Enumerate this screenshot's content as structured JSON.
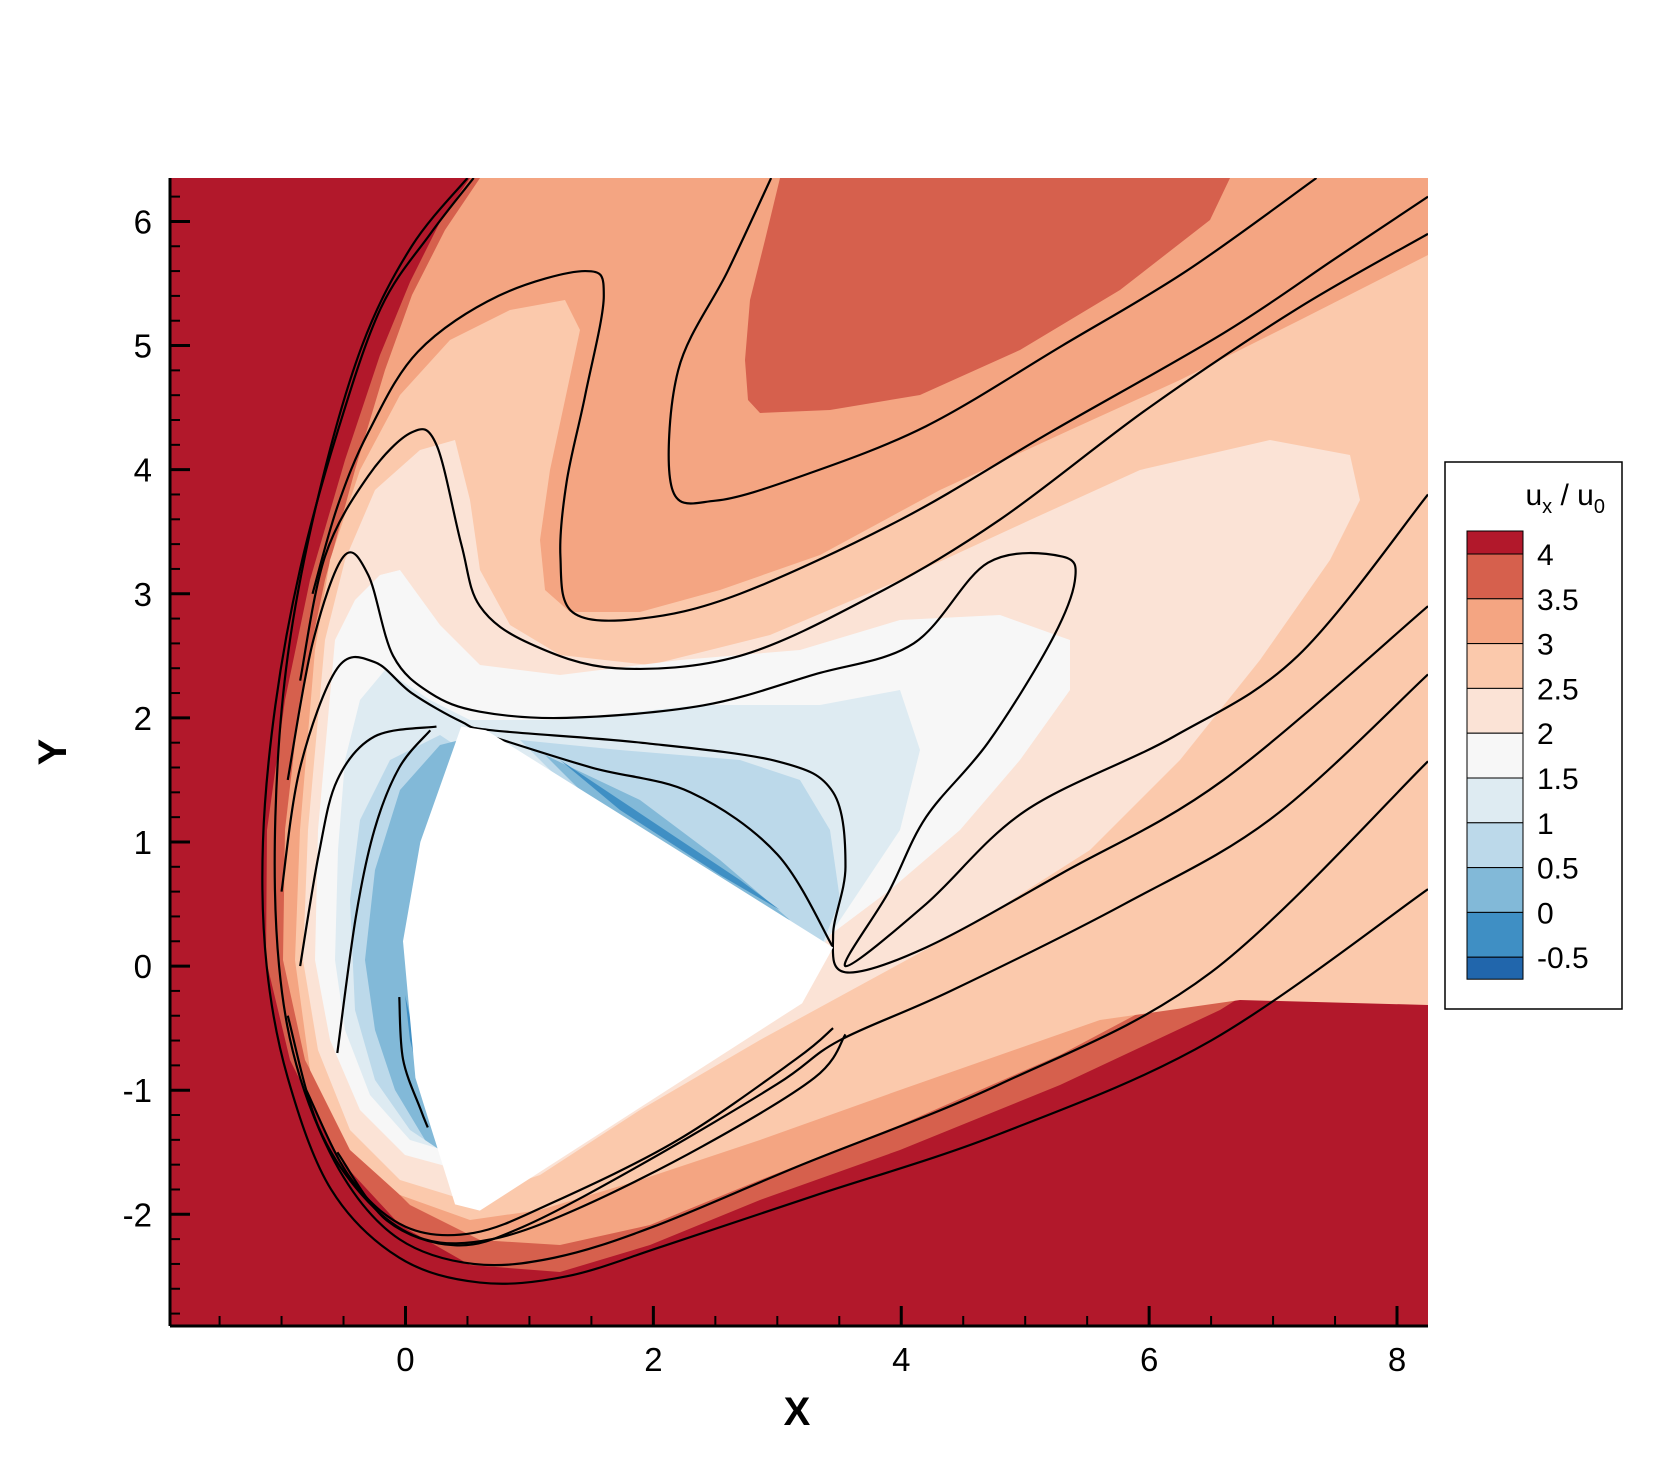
{
  "chart_data": {
    "type": "heatmap",
    "title": "",
    "xlabel": "X",
    "ylabel": "Y",
    "xlim": [
      -1.9,
      8.25
    ],
    "ylim": [
      -2.9,
      6.35
    ],
    "x_ticks": [
      0,
      2,
      4,
      6,
      8
    ],
    "x_tick_labels": [
      "0",
      "2",
      "4",
      "6",
      "8"
    ],
    "y_ticks": [
      -2,
      -1,
      0,
      1,
      2,
      3,
      4,
      5,
      6
    ],
    "y_tick_labels": [
      "-2",
      "-1",
      "0",
      "1",
      "2",
      "3",
      "4",
      "5",
      "6"
    ],
    "colorbar": {
      "title_main": "u",
      "title_sub_1": "x",
      "title_sep": " / u",
      "title_sub_2": "0",
      "levels": [
        4,
        3.5,
        3,
        2.5,
        2,
        1.5,
        1,
        0.5,
        0,
        -0.5
      ],
      "level_labels": [
        "4",
        "3.5",
        "3",
        "2.5",
        "2",
        "1.5",
        "1",
        "0.5",
        "0",
        "-0.5"
      ],
      "colors": [
        "#b2182b",
        "#d6604d",
        "#f4a582",
        "#fbc9ac",
        "#fbe3d6",
        "#f7f7f7",
        "#deebf2",
        "#bcd9ea",
        "#82b9d8",
        "#3f8fc4",
        "#2166ac"
      ],
      "placement": "right"
    },
    "body_region": {
      "description_color": "#ffffff",
      "vertices": [
        [
          0.45,
          1.93
        ],
        [
          0.65,
          1.9
        ],
        [
          3.45,
          0.15
        ],
        [
          3.2,
          -0.3
        ],
        [
          0.6,
          -1.97
        ],
        [
          0.4,
          -1.92
        ],
        [
          0.08,
          -0.9
        ],
        [
          -0.02,
          0.2
        ],
        [
          0.12,
          1.0
        ]
      ]
    },
    "contour_lines": [
      {
        "value": 4.0,
        "points": [
          [
            0.55,
            6.35
          ],
          [
            0.2,
            5.9
          ],
          [
            -0.2,
            5.3
          ],
          [
            -0.55,
            4.3
          ],
          [
            -0.85,
            3.2
          ],
          [
            -1.05,
            2.1
          ],
          [
            -1.15,
            1.0
          ],
          [
            -1.12,
            0.0
          ],
          [
            -0.95,
            -0.9
          ],
          [
            -0.6,
            -1.8
          ],
          [
            -0.05,
            -2.35
          ],
          [
            0.6,
            -2.55
          ],
          [
            1.3,
            -2.5
          ],
          [
            2.1,
            -2.25
          ],
          [
            3.3,
            -1.85
          ],
          [
            4.8,
            -1.35
          ],
          [
            6.5,
            -0.6
          ],
          [
            8.25,
            0.62
          ]
        ]
      },
      {
        "value": 3.5,
        "points": [
          [
            0.5,
            6.35
          ],
          [
            0.05,
            5.8
          ],
          [
            -0.35,
            5.0
          ],
          [
            -0.7,
            3.8
          ],
          [
            -0.95,
            2.5
          ],
          [
            -1.05,
            1.2
          ],
          [
            -1.02,
            0.0
          ],
          [
            -0.85,
            -0.9
          ],
          [
            -0.5,
            -1.7
          ],
          [
            -0.05,
            -2.2
          ],
          [
            0.55,
            -2.4
          ],
          [
            1.2,
            -2.35
          ],
          [
            2.0,
            -2.1
          ],
          [
            3.2,
            -1.6
          ],
          [
            4.8,
            -0.95
          ],
          [
            6.5,
            -0.05
          ],
          [
            8.25,
            1.65
          ]
        ]
      },
      {
        "value": 3.0,
        "points": [
          [
            2.95,
            6.35
          ],
          [
            2.6,
            5.6
          ],
          [
            2.2,
            4.8
          ],
          [
            2.15,
            3.85
          ],
          [
            2.5,
            3.75
          ],
          [
            3.2,
            3.95
          ],
          [
            4.2,
            4.35
          ],
          [
            5.3,
            5.0
          ],
          [
            6.3,
            5.6
          ],
          [
            7.35,
            6.35
          ]
        ]
      },
      {
        "value": 3.0,
        "points": [
          [
            -0.75,
            3.0
          ],
          [
            -0.55,
            3.7
          ],
          [
            -0.3,
            4.3
          ],
          [
            0.1,
            4.95
          ],
          [
            0.75,
            5.4
          ],
          [
            1.45,
            5.6
          ],
          [
            1.6,
            5.4
          ],
          [
            1.45,
            4.6
          ],
          [
            1.3,
            3.9
          ],
          [
            1.25,
            3.3
          ],
          [
            1.35,
            2.85
          ],
          [
            1.9,
            2.8
          ],
          [
            2.7,
            3.0
          ],
          [
            4.0,
            3.6
          ],
          [
            5.2,
            4.3
          ],
          [
            6.6,
            5.1
          ],
          [
            7.5,
            5.7
          ],
          [
            8.25,
            6.2
          ]
        ]
      },
      {
        "value": 2.5,
        "points": [
          [
            -0.85,
            2.3
          ],
          [
            -0.65,
            3.3
          ],
          [
            -0.3,
            3.95
          ],
          [
            0.05,
            4.3
          ],
          [
            0.25,
            4.2
          ],
          [
            0.45,
            3.4
          ],
          [
            0.6,
            2.9
          ],
          [
            1.0,
            2.6
          ],
          [
            1.7,
            2.4
          ],
          [
            2.7,
            2.5
          ],
          [
            3.8,
            3.0
          ],
          [
            4.8,
            3.6
          ],
          [
            6.0,
            4.5
          ],
          [
            7.2,
            5.3
          ],
          [
            8.25,
            5.9
          ]
        ]
      },
      {
        "value": 2.0,
        "points": [
          [
            -0.95,
            1.5
          ],
          [
            -0.75,
            2.6
          ],
          [
            -0.5,
            3.3
          ],
          [
            -0.3,
            3.15
          ],
          [
            -0.1,
            2.5
          ],
          [
            0.2,
            2.2
          ],
          [
            0.6,
            2.05
          ],
          [
            1.3,
            2.0
          ],
          [
            2.4,
            2.1
          ],
          [
            3.3,
            2.35
          ],
          [
            4.1,
            2.6
          ],
          [
            4.7,
            3.25
          ],
          [
            5.3,
            3.3
          ],
          [
            5.4,
            3.1
          ],
          [
            5.2,
            2.6
          ],
          [
            4.7,
            1.8
          ],
          [
            4.2,
            1.2
          ],
          [
            3.9,
            0.6
          ],
          [
            3.55,
            0.0
          ],
          [
            4.2,
            0.5
          ],
          [
            5.0,
            1.25
          ],
          [
            6.2,
            1.85
          ],
          [
            7.2,
            2.5
          ],
          [
            8.25,
            3.8
          ]
        ]
      },
      {
        "value": 1.5,
        "points": [
          [
            -1.0,
            0.6
          ],
          [
            -0.85,
            1.6
          ],
          [
            -0.55,
            2.4
          ],
          [
            -0.25,
            2.45
          ],
          [
            0.05,
            2.2
          ],
          [
            0.45,
            1.97
          ],
          [
            0.7,
            1.9
          ],
          [
            1.9,
            1.8
          ],
          [
            3.0,
            1.65
          ],
          [
            3.45,
            1.4
          ],
          [
            3.55,
            0.8
          ],
          [
            3.45,
            0.25
          ],
          [
            3.55,
            -0.05
          ],
          [
            4.2,
            0.15
          ],
          [
            5.3,
            0.75
          ],
          [
            6.6,
            1.5
          ],
          [
            8.25,
            2.9
          ]
        ]
      },
      {
        "value": 1.0,
        "points": [
          [
            -0.85,
            0.0
          ],
          [
            -0.7,
            0.9
          ],
          [
            -0.55,
            1.5
          ],
          [
            -0.25,
            1.85
          ],
          [
            0.25,
            1.93
          ]
        ]
      },
      {
        "value": 1.0,
        "points": [
          [
            0.6,
            1.88
          ],
          [
            1.5,
            1.6
          ],
          [
            2.3,
            1.4
          ],
          [
            3.0,
            0.9
          ],
          [
            3.45,
            0.15
          ]
        ]
      },
      {
        "value": 0.5,
        "points": [
          [
            -0.55,
            -0.7
          ],
          [
            -0.4,
            0.4
          ],
          [
            -0.25,
            1.1
          ],
          [
            -0.05,
            1.6
          ],
          [
            0.2,
            1.9
          ]
        ]
      },
      {
        "value": -0.5,
        "points": [
          [
            -0.05,
            -0.25
          ],
          [
            -0.02,
            -0.75
          ],
          [
            0.12,
            -1.15
          ],
          [
            0.18,
            -1.3
          ]
        ]
      },
      {
        "value": 1.5,
        "points": [
          [
            -0.95,
            -0.4
          ],
          [
            -0.7,
            -1.3
          ],
          [
            -0.3,
            -1.9
          ],
          [
            0.15,
            -2.2
          ],
          [
            0.7,
            -2.2
          ],
          [
            1.4,
            -1.95
          ],
          [
            2.4,
            -1.45
          ],
          [
            3.3,
            -0.9
          ],
          [
            3.55,
            -0.55
          ]
        ]
      },
      {
        "value": 2.0,
        "points": [
          [
            -0.8,
            -1.0
          ],
          [
            -0.45,
            -1.7
          ],
          [
            0.0,
            -2.1
          ],
          [
            0.55,
            -2.15
          ],
          [
            1.2,
            -1.9
          ],
          [
            2.2,
            -1.4
          ],
          [
            3.15,
            -0.75
          ],
          [
            3.45,
            -0.5
          ]
        ]
      },
      {
        "value": 2.5,
        "points": [
          [
            -0.55,
            -1.5
          ],
          [
            -0.15,
            -2.05
          ],
          [
            0.4,
            -2.25
          ],
          [
            0.95,
            -2.1
          ],
          [
            1.9,
            -1.6
          ],
          [
            3.0,
            -0.95
          ],
          [
            3.5,
            -0.6
          ],
          [
            4.4,
            -0.2
          ],
          [
            5.8,
            0.5
          ],
          [
            7.0,
            1.2
          ],
          [
            8.25,
            2.35
          ]
        ]
      }
    ]
  }
}
